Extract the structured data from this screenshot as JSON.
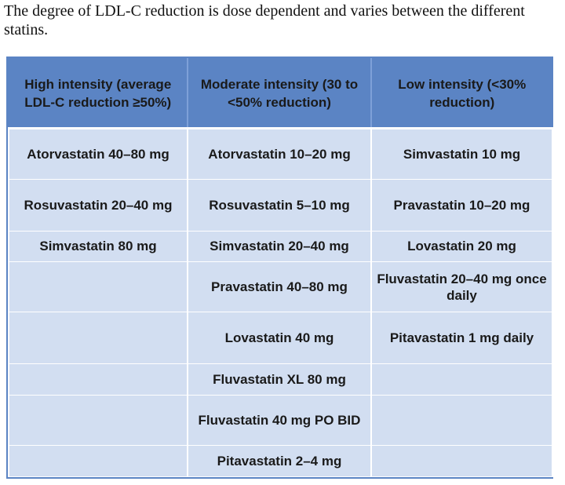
{
  "intro": "The degree of LDL-C reduction is dose dependent and varies between the different statins.",
  "table": {
    "headers": [
      "High intensity (average LDL-C reduction ≥50%)",
      "Moderate intensity (30 to <50% reduction)",
      "Low intensity (<30% reduction)"
    ],
    "rows": [
      [
        "Atorvastatin 40–80 mg",
        "Atorvastatin 10–20 mg",
        "Simvastatin 10 mg"
      ],
      [
        "Rosuvastatin 20–40 mg",
        "Rosuvastatin 5–10 mg",
        "Pravastatin 10–20 mg"
      ],
      [
        "Simvastatin 80 mg",
        "Simvastatin 20–40 mg",
        "Lovastatin 20 mg"
      ],
      [
        "",
        "Pravastatin 40–80 mg",
        "Fluvastatin 20–40 mg once daily"
      ],
      [
        "",
        "Lovastatin 40 mg",
        "Pitavastatin 1 mg daily"
      ],
      [
        "",
        "Fluvastatin XL 80 mg",
        ""
      ],
      [
        "",
        "Fluvastatin 40 mg PO BID",
        ""
      ],
      [
        "",
        "Pitavastatin 2–4 mg",
        ""
      ]
    ]
  },
  "colors": {
    "header_bg": "#5b84c4",
    "cell_bg": "#d2def1"
  }
}
